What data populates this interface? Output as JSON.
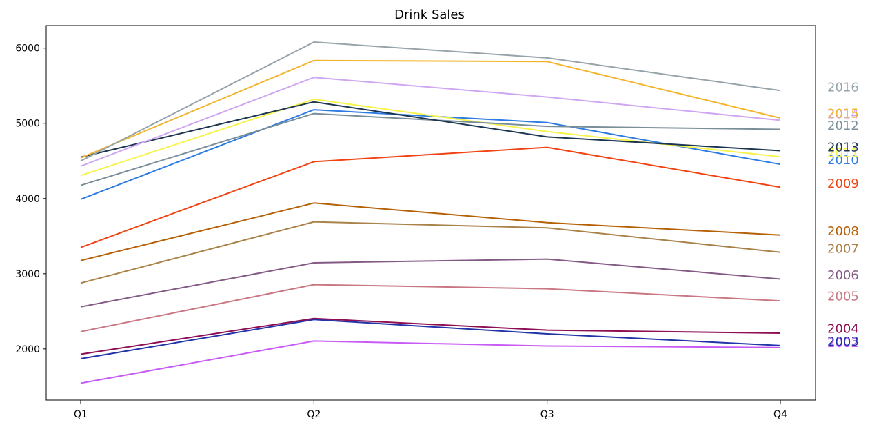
{
  "chart_data": {
    "type": "line",
    "title": "Drink Sales",
    "xlabel": "",
    "ylabel": "",
    "categories": [
      "Q1",
      "Q2",
      "Q3",
      "Q4"
    ],
    "ylim": [
      1320,
      6300
    ],
    "yticks": [
      2000,
      3000,
      4000,
      5000,
      6000
    ],
    "grid": false,
    "legend": "labels at right end of each line",
    "series": [
      {
        "name": "2002",
        "color": "#c85bf5",
        "values": [
          1545,
          2105,
          2040,
          2020
        ]
      },
      {
        "name": "2003",
        "color": "#2234a8",
        "values": [
          1870,
          2390,
          2200,
          2045
        ]
      },
      {
        "name": "2004",
        "color": "#8e0e54",
        "values": [
          1930,
          2405,
          2250,
          2210
        ]
      },
      {
        "name": "2005",
        "color": "#c97782",
        "values": [
          2230,
          2855,
          2800,
          2640
        ]
      },
      {
        "name": "2006",
        "color": "#835a84",
        "values": [
          2560,
          3145,
          3195,
          2930
        ]
      },
      {
        "name": "2007",
        "color": "#a98249",
        "values": [
          2875,
          3690,
          3610,
          3285
        ]
      },
      {
        "name": "2008",
        "color": "#b66005",
        "values": [
          3175,
          3940,
          3680,
          3515
        ]
      },
      {
        "name": "2009",
        "color": "#f04212",
        "values": [
          3350,
          4490,
          4680,
          4150
        ]
      },
      {
        "name": "2010",
        "color": "#2c7ae2",
        "values": [
          3990,
          5180,
          5010,
          4455
        ]
      },
      {
        "name": "2011",
        "color": "#f6f44a",
        "values": [
          4305,
          5320,
          4890,
          4555
        ]
      },
      {
        "name": "2012",
        "color": "#7a8e99",
        "values": [
          4175,
          5130,
          4960,
          4920
        ]
      },
      {
        "name": "2013",
        "color": "#1c3650",
        "values": [
          4550,
          5285,
          4820,
          4635
        ]
      },
      {
        "name": "2014",
        "color": "#cfa6f2",
        "values": [
          4430,
          5610,
          5350,
          5040
        ]
      },
      {
        "name": "2015",
        "color": "#f3b52d",
        "values": [
          4540,
          5835,
          5820,
          5070
        ]
      },
      {
        "name": "2016",
        "color": "#96a3aa",
        "values": [
          4500,
          6080,
          5870,
          5435
        ]
      }
    ],
    "end_label_values": {
      "2002": 2080,
      "2003": 2100,
      "2004": 2270,
      "2005": 2700,
      "2006": 2980,
      "2007": 3335,
      "2008": 3565,
      "2009": 4200,
      "2010": 4510,
      "2011": 4610,
      "2012": 4970,
      "2013": 4680,
      "2014": 5120,
      "2015": 5130,
      "2016": 5480
    }
  }
}
